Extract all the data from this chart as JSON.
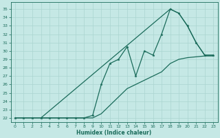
{
  "title": "",
  "xlabel": "Humidex (Indice chaleur)",
  "ylabel": "",
  "bg_color": "#c5e8e5",
  "grid_color": "#aad4d0",
  "line_color": "#1a6b5a",
  "xlim": [
    -0.5,
    23.5
  ],
  "ylim": [
    21.5,
    35.8
  ],
  "xticks": [
    0,
    1,
    2,
    3,
    4,
    5,
    6,
    7,
    8,
    9,
    10,
    11,
    12,
    13,
    14,
    15,
    16,
    17,
    18,
    19,
    20,
    21,
    22,
    23
  ],
  "yticks": [
    22,
    23,
    24,
    25,
    26,
    27,
    28,
    29,
    30,
    31,
    32,
    33,
    34,
    35
  ],
  "main_x": [
    0,
    1,
    2,
    3,
    4,
    5,
    6,
    7,
    8,
    9,
    10,
    11,
    12,
    13,
    14,
    15,
    16,
    17,
    18,
    19,
    20,
    21,
    22,
    23
  ],
  "main_y": [
    22,
    22,
    22,
    22,
    22,
    22,
    22,
    22,
    22,
    22.3,
    26,
    28.5,
    29,
    30.5,
    27,
    30,
    29.5,
    32,
    35,
    34.5,
    33,
    31,
    29.5,
    29.5
  ],
  "upper_x": [
    3,
    18,
    19,
    20,
    21,
    22,
    23
  ],
  "upper_y": [
    22,
    35,
    34.5,
    33,
    31,
    29.5,
    29.5
  ],
  "lower_x": [
    0,
    1,
    2,
    3,
    4,
    5,
    6,
    7,
    8,
    9,
    10,
    11,
    12,
    13,
    14,
    15,
    16,
    17,
    18,
    19,
    20,
    21,
    22,
    23
  ],
  "lower_y": [
    22,
    22,
    22,
    22,
    22,
    22,
    22,
    22,
    22,
    22,
    22.5,
    23.5,
    24.5,
    25.5,
    26,
    26.5,
    27,
    27.5,
    28.5,
    29,
    29.2,
    29.3,
    29.4,
    29.4
  ]
}
